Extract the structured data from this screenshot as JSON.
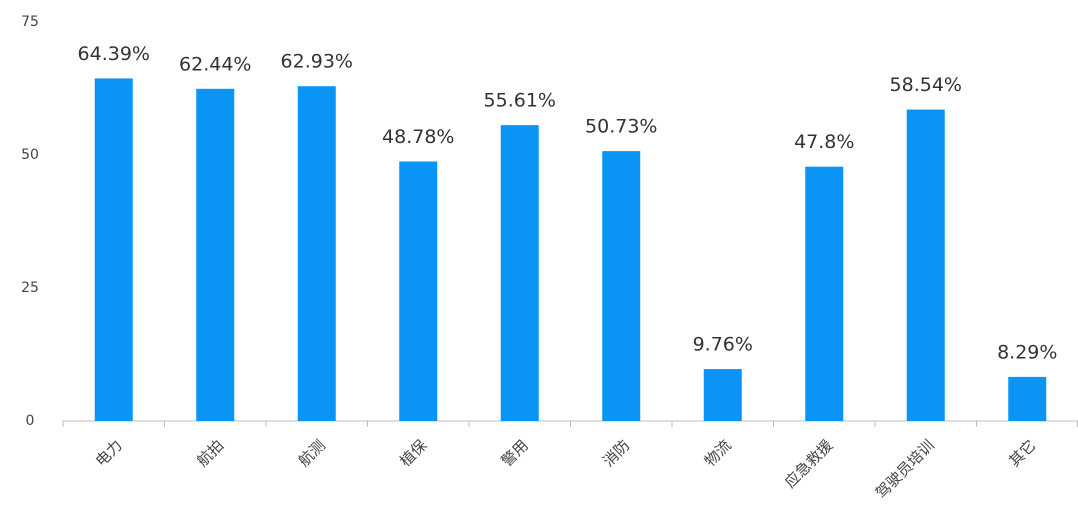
{
  "chart_data": {
    "type": "bar",
    "categories": [
      "电力",
      "航拍",
      "航测",
      "植保",
      "警用",
      "消防",
      "物流",
      "应急救援",
      "驾驶员培训",
      "其它"
    ],
    "values": [
      64.39,
      62.44,
      62.93,
      48.78,
      55.61,
      50.73,
      9.76,
      47.8,
      58.54,
      8.29
    ],
    "value_labels": [
      "64.39%",
      "62.44%",
      "62.93%",
      "48.78%",
      "55.61%",
      "50.73%",
      "9.76%",
      "47.8%",
      "58.54%",
      "8.29%"
    ],
    "color": "#0a94f5",
    "ylim": [
      0,
      75
    ],
    "yticks": [
      0,
      25,
      50,
      75
    ],
    "grid": false
  }
}
